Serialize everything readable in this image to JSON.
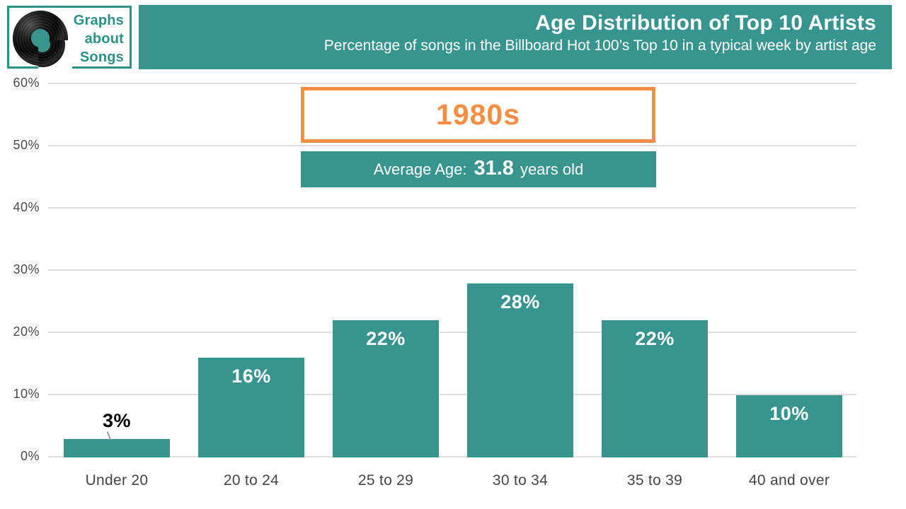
{
  "colors": {
    "teal": "#38948E",
    "logo_teal": "#2B9286",
    "orange": "#F78E41",
    "grid": "#DEDEDE",
    "tick": "#4A4A4A",
    "xtick": "#454545"
  },
  "logo": {
    "line1": "Graphs",
    "line2": "about",
    "line3": "Songs"
  },
  "header": {
    "title": "Age Distribution of Top 10 Artists",
    "subtitle": "Percentage of songs in the Billboard Hot 100’s Top 10 in a typical week by artist age"
  },
  "annotations": {
    "decade": "1980s",
    "avg_prefix": "Average Age:",
    "avg_value": "31.8",
    "avg_suffix": "years old"
  },
  "chart_data": {
    "type": "bar",
    "title": "Age Distribution of Top 10 Artists",
    "subtitle": "Percentage of songs in the Billboard Hot 100’s Top 10 in a typical week by artist age",
    "categories": [
      "Under 20",
      "20 to 24",
      "25 to 29",
      "30 to 34",
      "35 to 39",
      "40 and over"
    ],
    "values": [
      3,
      16,
      22,
      28,
      22,
      10
    ],
    "value_labels": [
      "3%",
      "16%",
      "22%",
      "28%",
      "22%",
      "10%"
    ],
    "outside_label_indices": [
      0
    ],
    "yticks": [
      "0%",
      "10%",
      "20%",
      "30%",
      "40%",
      "50%",
      "60%"
    ],
    "ylim": [
      0,
      60
    ],
    "grid": true,
    "legend": false,
    "bar_color": "#38948E",
    "annotation_decade": "1980s",
    "annotation_average_age": "Average Age: 31.8 years old"
  }
}
